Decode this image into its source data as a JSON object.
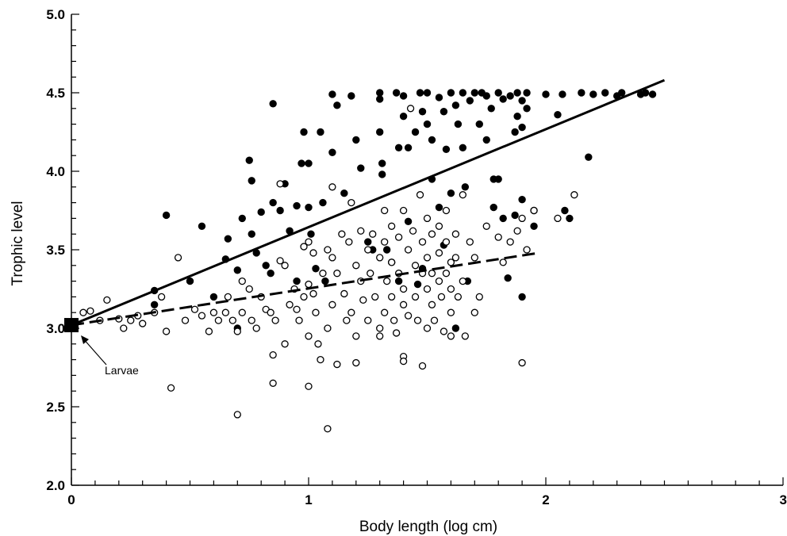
{
  "chart_data": {
    "type": "scatter",
    "title": "",
    "xlabel": "Body length (log cm)",
    "ylabel": "Trophic level",
    "xlim": [
      0,
      3
    ],
    "ylim": [
      2.0,
      5.0
    ],
    "xticks": [
      "0",
      "1",
      "2",
      "3"
    ],
    "yticks": [
      "2.0",
      "2.5",
      "3.0",
      "3.5",
      "4.0",
      "4.5",
      "5.0"
    ],
    "grid": false,
    "legend": "none",
    "annotations": [
      {
        "text": "Larvae",
        "x": 0.0,
        "y": 3.02,
        "marker": "square"
      }
    ],
    "series": [
      {
        "marker": "filled-circle",
        "points": [
          [
            0.35,
            3.24
          ],
          [
            0.35,
            3.15
          ],
          [
            0.4,
            3.72
          ],
          [
            0.5,
            3.3
          ],
          [
            0.55,
            3.65
          ],
          [
            0.6,
            3.2
          ],
          [
            0.65,
            3.44
          ],
          [
            0.66,
            3.57
          ],
          [
            0.7,
            3.37
          ],
          [
            0.7,
            3.0
          ],
          [
            0.72,
            3.7
          ],
          [
            0.75,
            4.07
          ],
          [
            0.76,
            3.94
          ],
          [
            0.76,
            3.6
          ],
          [
            0.78,
            3.48
          ],
          [
            0.8,
            3.74
          ],
          [
            0.82,
            3.4
          ],
          [
            0.84,
            3.35
          ],
          [
            0.85,
            4.43
          ],
          [
            0.85,
            3.8
          ],
          [
            0.88,
            3.75
          ],
          [
            0.9,
            3.92
          ],
          [
            0.92,
            3.62
          ],
          [
            0.95,
            3.78
          ],
          [
            0.95,
            3.3
          ],
          [
            0.97,
            4.05
          ],
          [
            0.98,
            4.25
          ],
          [
            1.0,
            4.05
          ],
          [
            1.0,
            3.77
          ],
          [
            1.01,
            3.6
          ],
          [
            1.03,
            3.38
          ],
          [
            1.05,
            4.25
          ],
          [
            1.06,
            3.8
          ],
          [
            1.07,
            3.3
          ],
          [
            1.1,
            4.49
          ],
          [
            1.1,
            4.12
          ],
          [
            1.12,
            4.42
          ],
          [
            1.15,
            3.86
          ],
          [
            1.18,
            4.48
          ],
          [
            1.2,
            4.2
          ],
          [
            1.22,
            4.02
          ],
          [
            1.25,
            3.55
          ],
          [
            1.27,
            3.5
          ],
          [
            1.3,
            4.5
          ],
          [
            1.3,
            4.46
          ],
          [
            1.3,
            4.25
          ],
          [
            1.31,
            4.05
          ],
          [
            1.31,
            3.98
          ],
          [
            1.33,
            3.5
          ],
          [
            1.35,
            3.42
          ],
          [
            1.37,
            4.5
          ],
          [
            1.38,
            4.15
          ],
          [
            1.38,
            3.3
          ],
          [
            1.4,
            4.48
          ],
          [
            1.4,
            4.35
          ],
          [
            1.42,
            4.15
          ],
          [
            1.42,
            3.68
          ],
          [
            1.45,
            4.25
          ],
          [
            1.46,
            3.28
          ],
          [
            1.47,
            4.5
          ],
          [
            1.48,
            4.38
          ],
          [
            1.48,
            3.38
          ],
          [
            1.5,
            4.3
          ],
          [
            1.5,
            4.5
          ],
          [
            1.52,
            4.2
          ],
          [
            1.52,
            3.95
          ],
          [
            1.55,
            4.47
          ],
          [
            1.55,
            3.77
          ],
          [
            1.57,
            4.38
          ],
          [
            1.57,
            3.53
          ],
          [
            1.58,
            4.14
          ],
          [
            1.6,
            4.5
          ],
          [
            1.6,
            3.86
          ],
          [
            1.62,
            4.42
          ],
          [
            1.62,
            3.0
          ],
          [
            1.63,
            4.3
          ],
          [
            1.65,
            4.5
          ],
          [
            1.65,
            4.15
          ],
          [
            1.66,
            3.9
          ],
          [
            1.67,
            3.3
          ],
          [
            1.68,
            4.45
          ],
          [
            1.7,
            4.5
          ],
          [
            1.72,
            4.3
          ],
          [
            1.73,
            4.5
          ],
          [
            1.75,
            4.48
          ],
          [
            1.75,
            4.2
          ],
          [
            1.77,
            4.4
          ],
          [
            1.78,
            3.95
          ],
          [
            1.78,
            3.77
          ],
          [
            1.8,
            4.5
          ],
          [
            1.8,
            3.95
          ],
          [
            1.82,
            4.46
          ],
          [
            1.82,
            3.7
          ],
          [
            1.84,
            3.32
          ],
          [
            1.85,
            4.48
          ],
          [
            1.87,
            4.25
          ],
          [
            1.87,
            3.72
          ],
          [
            1.88,
            4.5
          ],
          [
            1.88,
            4.35
          ],
          [
            1.9,
            4.45
          ],
          [
            1.9,
            4.28
          ],
          [
            1.9,
            3.82
          ],
          [
            1.9,
            3.2
          ],
          [
            1.92,
            4.5
          ],
          [
            1.92,
            4.4
          ],
          [
            1.95,
            3.75
          ],
          [
            1.95,
            3.65
          ],
          [
            2.0,
            4.49
          ],
          [
            2.05,
            4.36
          ],
          [
            2.07,
            4.49
          ],
          [
            2.08,
            3.75
          ],
          [
            2.1,
            3.7
          ],
          [
            2.15,
            4.5
          ],
          [
            2.18,
            4.09
          ],
          [
            2.2,
            4.49
          ],
          [
            2.25,
            4.5
          ],
          [
            2.3,
            4.48
          ],
          [
            2.32,
            4.5
          ],
          [
            2.4,
            4.49
          ],
          [
            2.42,
            4.5
          ],
          [
            2.45,
            4.49
          ]
        ]
      },
      {
        "marker": "open-circle",
        "points": [
          [
            0.05,
            3.1
          ],
          [
            0.08,
            3.11
          ],
          [
            0.12,
            3.05
          ],
          [
            0.15,
            3.18
          ],
          [
            0.2,
            3.06
          ],
          [
            0.22,
            3.0
          ],
          [
            0.25,
            3.05
          ],
          [
            0.28,
            3.08
          ],
          [
            0.3,
            3.03
          ],
          [
            0.35,
            3.1
          ],
          [
            0.38,
            3.2
          ],
          [
            0.4,
            2.98
          ],
          [
            0.42,
            2.62
          ],
          [
            0.45,
            3.45
          ],
          [
            0.48,
            3.05
          ],
          [
            0.52,
            3.12
          ],
          [
            0.55,
            3.08
          ],
          [
            0.58,
            2.98
          ],
          [
            0.6,
            3.1
          ],
          [
            0.62,
            3.05
          ],
          [
            0.65,
            3.1
          ],
          [
            0.66,
            3.2
          ],
          [
            0.68,
            3.05
          ],
          [
            0.7,
            2.98
          ],
          [
            0.7,
            2.45
          ],
          [
            0.72,
            3.3
          ],
          [
            0.72,
            3.1
          ],
          [
            0.75,
            3.25
          ],
          [
            0.76,
            3.05
          ],
          [
            0.78,
            3.0
          ],
          [
            0.8,
            3.2
          ],
          [
            0.82,
            3.12
          ],
          [
            0.84,
            3.1
          ],
          [
            0.85,
            2.83
          ],
          [
            0.85,
            2.65
          ],
          [
            0.86,
            3.05
          ],
          [
            0.88,
            3.43
          ],
          [
            0.88,
            3.92
          ],
          [
            0.9,
            3.4
          ],
          [
            0.9,
            2.9
          ],
          [
            0.92,
            3.15
          ],
          [
            0.94,
            3.25
          ],
          [
            0.95,
            3.12
          ],
          [
            0.96,
            3.05
          ],
          [
            0.98,
            3.52
          ],
          [
            0.98,
            3.2
          ],
          [
            1.0,
            3.55
          ],
          [
            1.0,
            3.28
          ],
          [
            1.0,
            2.95
          ],
          [
            1.0,
            2.63
          ],
          [
            1.02,
            3.48
          ],
          [
            1.02,
            3.22
          ],
          [
            1.03,
            3.1
          ],
          [
            1.04,
            2.9
          ],
          [
            1.05,
            2.8
          ],
          [
            1.06,
            3.35
          ],
          [
            1.08,
            3.5
          ],
          [
            1.08,
            3.0
          ],
          [
            1.08,
            2.36
          ],
          [
            1.1,
            3.9
          ],
          [
            1.1,
            3.45
          ],
          [
            1.1,
            3.15
          ],
          [
            1.12,
            2.77
          ],
          [
            1.12,
            3.35
          ],
          [
            1.14,
            3.6
          ],
          [
            1.15,
            3.22
          ],
          [
            1.16,
            3.05
          ],
          [
            1.17,
            3.55
          ],
          [
            1.18,
            3.8
          ],
          [
            1.18,
            3.1
          ],
          [
            1.2,
            3.4
          ],
          [
            1.2,
            2.95
          ],
          [
            1.2,
            2.78
          ],
          [
            1.22,
            3.62
          ],
          [
            1.22,
            3.3
          ],
          [
            1.23,
            3.18
          ],
          [
            1.25,
            3.5
          ],
          [
            1.25,
            3.05
          ],
          [
            1.26,
            3.35
          ],
          [
            1.27,
            3.6
          ],
          [
            1.28,
            3.2
          ],
          [
            1.3,
            3.45
          ],
          [
            1.3,
            3.0
          ],
          [
            1.3,
            2.95
          ],
          [
            1.32,
            3.75
          ],
          [
            1.32,
            3.55
          ],
          [
            1.32,
            3.1
          ],
          [
            1.33,
            3.3
          ],
          [
            1.35,
            3.65
          ],
          [
            1.35,
            3.42
          ],
          [
            1.35,
            3.2
          ],
          [
            1.36,
            3.05
          ],
          [
            1.37,
            2.97
          ],
          [
            1.38,
            3.58
          ],
          [
            1.38,
            3.35
          ],
          [
            1.4,
            3.75
          ],
          [
            1.4,
            3.25
          ],
          [
            1.4,
            3.15
          ],
          [
            1.4,
            2.82
          ],
          [
            1.4,
            2.79
          ],
          [
            1.42,
            3.5
          ],
          [
            1.42,
            3.08
          ],
          [
            1.43,
            4.4
          ],
          [
            1.44,
            3.62
          ],
          [
            1.45,
            3.4
          ],
          [
            1.45,
            3.2
          ],
          [
            1.46,
            3.05
          ],
          [
            1.47,
            3.85
          ],
          [
            1.48,
            3.55
          ],
          [
            1.48,
            3.35
          ],
          [
            1.48,
            2.76
          ],
          [
            1.5,
            3.7
          ],
          [
            1.5,
            3.45
          ],
          [
            1.5,
            3.25
          ],
          [
            1.5,
            3.0
          ],
          [
            1.52,
            3.6
          ],
          [
            1.52,
            3.35
          ],
          [
            1.52,
            3.15
          ],
          [
            1.53,
            3.05
          ],
          [
            1.55,
            3.65
          ],
          [
            1.55,
            3.48
          ],
          [
            1.55,
            3.3
          ],
          [
            1.56,
            3.2
          ],
          [
            1.57,
            2.98
          ],
          [
            1.58,
            3.75
          ],
          [
            1.58,
            3.55
          ],
          [
            1.58,
            3.35
          ],
          [
            1.6,
            3.42
          ],
          [
            1.6,
            3.25
          ],
          [
            1.6,
            3.1
          ],
          [
            1.6,
            2.95
          ],
          [
            1.62,
            3.6
          ],
          [
            1.62,
            3.45
          ],
          [
            1.63,
            3.2
          ],
          [
            1.65,
            3.85
          ],
          [
            1.65,
            3.3
          ],
          [
            1.66,
            2.95
          ],
          [
            1.68,
            3.55
          ],
          [
            1.7,
            3.45
          ],
          [
            1.7,
            3.1
          ],
          [
            1.72,
            3.2
          ],
          [
            1.75,
            3.65
          ],
          [
            1.8,
            3.58
          ],
          [
            1.82,
            3.42
          ],
          [
            1.85,
            3.55
          ],
          [
            1.88,
            3.62
          ],
          [
            1.9,
            3.7
          ],
          [
            1.9,
            2.78
          ],
          [
            1.92,
            3.5
          ],
          [
            1.95,
            3.75
          ],
          [
            2.05,
            3.7
          ],
          [
            2.12,
            3.85
          ]
        ]
      }
    ],
    "fit_lines": [
      {
        "style": "solid",
        "x": [
          0.0,
          2.5
        ],
        "y": [
          3.02,
          4.58
        ]
      },
      {
        "style": "dashed",
        "x": [
          0.0,
          1.97
        ],
        "y": [
          3.02,
          3.48
        ]
      }
    ]
  }
}
